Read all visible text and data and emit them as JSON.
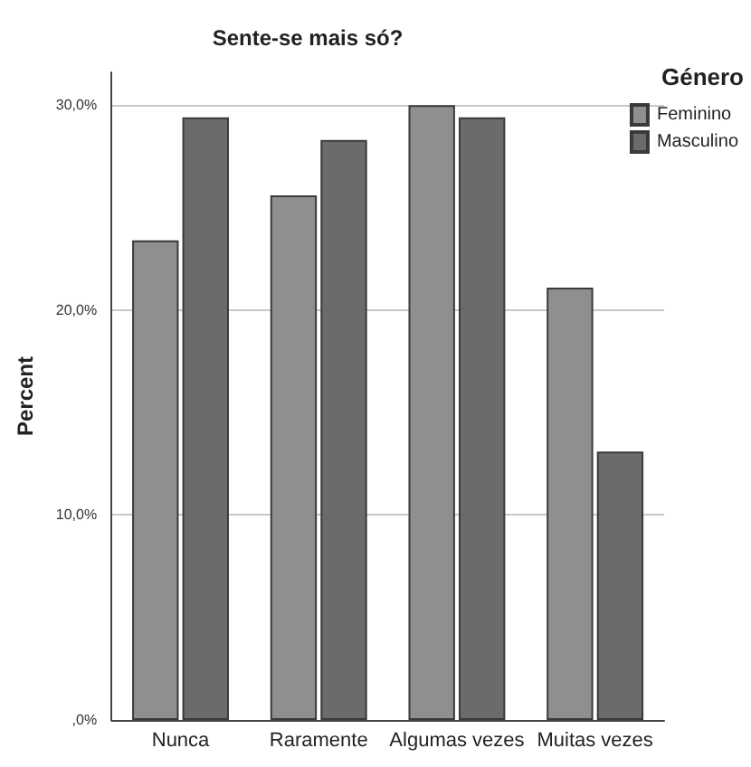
{
  "chart_data": {
    "type": "bar",
    "title": "Sente-se mais só?",
    "ylabel": "Percent",
    "legend_title": "Género",
    "categories": [
      "Nunca",
      "Raramente",
      "Algumas vezes",
      "Muitas vezes"
    ],
    "series": [
      {
        "name": "Feminino",
        "color": "#8f8f8f",
        "values": [
          23.4,
          25.6,
          30.0,
          21.1
        ]
      },
      {
        "name": "Masculino",
        "color": "#6b6b6b",
        "values": [
          29.4,
          28.3,
          29.4,
          13.1
        ]
      }
    ],
    "ylim": [
      0,
      31.6
    ],
    "yticks": [
      {
        "value": 0,
        "label": ",0%"
      },
      {
        "value": 10,
        "label": "10,0%"
      },
      {
        "value": 20,
        "label": "20,0%"
      },
      {
        "value": 30,
        "label": "30,0%"
      }
    ],
    "grid": "y",
    "legend": "top right"
  }
}
